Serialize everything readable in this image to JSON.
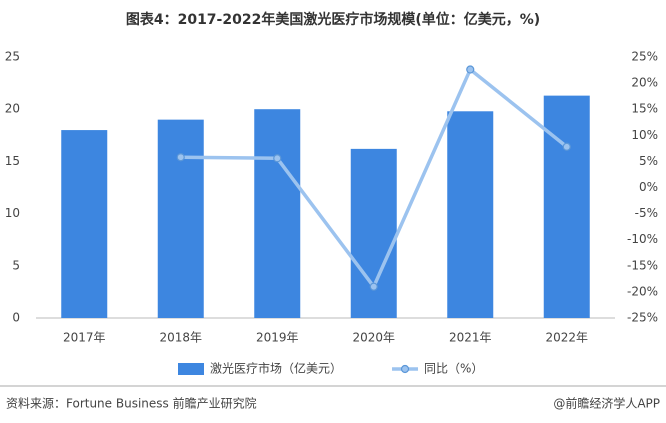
{
  "chart_data": {
    "type": "bar",
    "title": "图表4：2017-2022年美国激光医疗市场规模(单位：亿美元，%)",
    "categories": [
      "2017年",
      "2018年",
      "2019年",
      "2020年",
      "2021年",
      "2022年"
    ],
    "series": [
      {
        "name": "激光医疗市场（亿美元）",
        "type": "bar",
        "color": "#3d86e0",
        "values": [
          18.0,
          19.0,
          20.0,
          16.2,
          19.8,
          21.3
        ]
      },
      {
        "name": "同比（%）",
        "type": "line",
        "axis": "y2",
        "color": "#9cc3ef",
        "values": [
          null,
          5.8,
          5.6,
          -19.0,
          22.6,
          7.8
        ]
      }
    ],
    "ylim": [
      0,
      25
    ],
    "yticks": [
      0,
      5,
      10,
      15,
      20,
      25
    ],
    "y2lim": [
      -25,
      25
    ],
    "y2ticks": [
      {
        "value": -25,
        "label": "-25%"
      },
      {
        "value": -20,
        "label": "-20%"
      },
      {
        "value": -15,
        "label": "-15%"
      },
      {
        "value": -10,
        "label": "-10%"
      },
      {
        "value": -5,
        "label": "-5%"
      },
      {
        "value": 0,
        "label": "0%"
      },
      {
        "value": 5,
        "label": "5%"
      },
      {
        "value": 10,
        "label": "10%"
      },
      {
        "value": 15,
        "label": "15%"
      },
      {
        "value": 20,
        "label": "20%"
      },
      {
        "value": 25,
        "label": "25%"
      }
    ],
    "grid": false,
    "legend": "bottom",
    "source": "资料来源：Fortune Business 前瞻产业研究院",
    "credit": "@前瞻经济学人APP"
  }
}
